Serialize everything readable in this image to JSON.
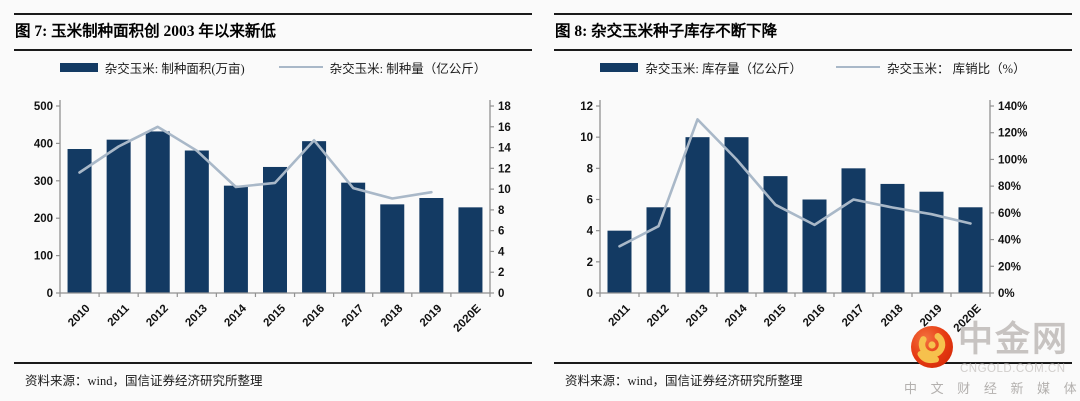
{
  "colors": {
    "bar": "#133a63",
    "line": "#a9b8c8",
    "axis": "#919191",
    "tick_text": "#111111"
  },
  "panels": [
    {
      "title": "图 7:  玉米制种面积创 2003 年以来新低",
      "legend": {
        "bar": "杂交玉米: 制种面积(万亩)",
        "line": "杂交玉米: 制种量（亿公斤）"
      },
      "source": "资料来源：wind，国信证券经济研究所整理"
    },
    {
      "title": "图 8:  杂交玉米种子库存不断下降",
      "legend": {
        "bar": "杂交玉米: 库存量（亿公斤）",
        "line": "杂交玉米： 库销比（%）"
      },
      "source": "资料来源：wind，国信证券经济研究所整理"
    }
  ],
  "chart_data": [
    {
      "type": "bar",
      "title": "图 7: 玉米制种面积创 2003 年以来新低",
      "categories": [
        "2010",
        "2011",
        "2012",
        "2013",
        "2014",
        "2015",
        "2016",
        "2017",
        "2018",
        "2019",
        "2020E"
      ],
      "series": [
        {
          "name": "杂交玉米: 制种面积(万亩)",
          "type": "bar",
          "axis": "left",
          "values": [
            385,
            410,
            432,
            381,
            287,
            337,
            406,
            295,
            237,
            254,
            229
          ]
        },
        {
          "name": "杂交玉米: 制种量（亿公斤）",
          "type": "line",
          "axis": "right",
          "values": [
            11.6,
            14.1,
            16,
            13.7,
            10.2,
            10.6,
            14.7,
            10.1,
            9.1,
            9.7
          ]
        }
      ],
      "left_axis": {
        "min": 0,
        "max": 500,
        "step": 100,
        "format": "number"
      },
      "right_axis": {
        "min": 0,
        "max": 18,
        "step": 2,
        "format": "number"
      },
      "grid": false,
      "legend_position": "top"
    },
    {
      "type": "bar",
      "title": "图 8: 杂交玉米种子库存不断下降",
      "categories": [
        "2011",
        "2012",
        "2013",
        "2014",
        "2015",
        "2016",
        "2017",
        "2018",
        "2019",
        "2020E"
      ],
      "series": [
        {
          "name": "杂交玉米: 库存量（亿公斤）",
          "type": "bar",
          "axis": "left",
          "values": [
            4,
            5.5,
            10,
            10,
            7.5,
            6,
            8,
            7,
            6.5,
            5.5
          ]
        },
        {
          "name": "杂交玉米： 库销比（%）",
          "type": "line",
          "axis": "right",
          "values": [
            35,
            50,
            130,
            100,
            66,
            51,
            70,
            64,
            59,
            52
          ]
        }
      ],
      "left_axis": {
        "min": 0,
        "max": 12,
        "step": 2,
        "format": "number"
      },
      "right_axis": {
        "min": 0,
        "max": 140,
        "step": 20,
        "format": "percent"
      },
      "grid": false,
      "legend_position": "top"
    }
  ],
  "logo": {
    "name": "中金网",
    "domain": "CNGOLD.COM.CN",
    "tagline": "中 文 财 经 新 媒 体"
  }
}
